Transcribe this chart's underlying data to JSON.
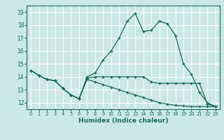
{
  "xlabel": "Humidex (Indice chaleur)",
  "background_color": "#cce8e4",
  "grid_color": "#ffffff",
  "line_color": "#1a6b5a",
  "xlim": [
    -0.5,
    23.5
  ],
  "ylim": [
    11.5,
    19.5
  ],
  "xticks": [
    0,
    1,
    2,
    3,
    4,
    5,
    6,
    7,
    8,
    9,
    10,
    11,
    12,
    13,
    14,
    15,
    16,
    17,
    18,
    19,
    20,
    21,
    22,
    23
  ],
  "yticks": [
    12,
    13,
    14,
    15,
    16,
    17,
    18,
    19
  ],
  "series": [
    {
      "x": [
        0,
        1,
        2,
        3,
        4,
        5,
        6,
        7,
        8,
        9,
        10,
        11,
        12,
        13,
        14,
        15,
        16,
        17,
        18,
        19,
        20,
        21,
        22,
        23
      ],
      "y": [
        14.5,
        14.1,
        13.8,
        13.7,
        13.1,
        12.6,
        12.3,
        14.0,
        14.3,
        15.3,
        16.0,
        17.0,
        18.3,
        18.9,
        17.5,
        17.6,
        18.3,
        18.1,
        17.2,
        15.0,
        14.2,
        12.8,
        12.0,
        11.7
      ]
    },
    {
      "x": [
        0,
        1,
        2,
        3,
        4,
        5,
        6,
        7,
        8,
        9,
        10,
        11,
        12,
        13,
        14,
        15,
        16,
        17,
        18,
        19,
        20,
        21,
        22,
        23
      ],
      "y": [
        14.5,
        14.1,
        13.8,
        13.7,
        13.1,
        12.6,
        12.3,
        13.9,
        14.0,
        14.0,
        14.0,
        14.0,
        14.0,
        14.0,
        14.0,
        13.6,
        13.5,
        13.5,
        13.5,
        13.5,
        13.5,
        13.5,
        11.9,
        11.7
      ]
    },
    {
      "x": [
        0,
        1,
        2,
        3,
        4,
        5,
        6,
        7,
        8,
        9,
        10,
        11,
        12,
        13,
        14,
        15,
        16,
        17,
        18,
        19,
        20,
        21,
        22,
        23
      ],
      "y": [
        14.5,
        14.1,
        13.8,
        13.7,
        13.1,
        12.6,
        12.3,
        13.8,
        13.6,
        13.4,
        13.2,
        13.0,
        12.8,
        12.6,
        12.4,
        12.2,
        12.0,
        11.9,
        11.8,
        11.75,
        11.7,
        11.7,
        11.7,
        11.7
      ]
    }
  ]
}
